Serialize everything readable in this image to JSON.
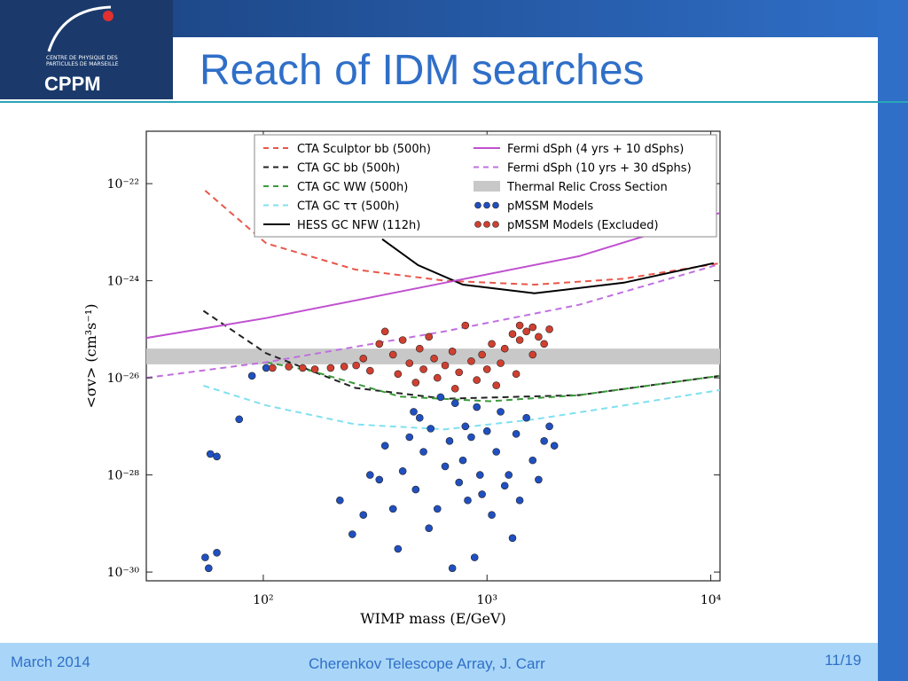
{
  "header": {
    "title": "Reach of IDM searches",
    "logo_caption": "CENTRE DE PHYSIQUE DES PARTICULES DE MARSEILLE",
    "logo_name": "CPPM"
  },
  "footer": {
    "date": "March 2014",
    "center": "Cherenkov Telescope Array, J. Carr",
    "page": "11/19"
  },
  "chart_data": {
    "type": "line",
    "xlabel": "WIMP mass (E/GeV)",
    "ylabel": "<σv> (cm³s⁻¹)",
    "xscale": "log",
    "yscale": "log",
    "xlim": [
      30,
      11000
    ],
    "ylim": [
      6.6e-31,
      1.2e-21
    ],
    "xticks": [
      {
        "value": 100,
        "label": "10²"
      },
      {
        "value": 1000,
        "label": "10³"
      },
      {
        "value": 10000,
        "label": "10⁴"
      }
    ],
    "yticks": [
      {
        "value": 1e-30,
        "label": "10⁻³⁰"
      },
      {
        "value": 1e-28,
        "label": "10⁻²⁸"
      },
      {
        "value": 1e-26,
        "label": "10⁻²⁶"
      },
      {
        "value": 1e-24,
        "label": "10⁻²⁴"
      },
      {
        "value": 1e-22,
        "label": "10⁻²²"
      }
    ],
    "legend": "upper right",
    "series": [
      {
        "name": "CTA Sculptor bb (500h)",
        "color": "#e8574a",
        "style": "dashed",
        "x": [
          55,
          103,
          258,
          649,
          1630,
          4090,
          11000
        ],
        "values": [
          7.2e-23,
          5.9e-24,
          1.7e-24,
          1e-24,
          8.3e-25,
          1.1e-24,
          2.3e-24
        ]
      },
      {
        "name": "CTA GC bb (500h)",
        "color": "#222222",
        "style": "dashed",
        "x": [
          54,
          103,
          258,
          649,
          2580,
          11000
        ],
        "values": [
          2.4e-25,
          3.2e-26,
          6.2e-27,
          3.7e-27,
          4.4e-27,
          1.1e-26
        ]
      },
      {
        "name": "CTA GC WW (500h)",
        "color": "#3a9a3a",
        "style": "dashed",
        "x": [
          103,
          163,
          409,
          1030,
          2580,
          11000
        ],
        "values": [
          2.1e-26,
          1.4e-26,
          4.1e-27,
          3.3e-27,
          4.4e-27,
          1.1e-26
        ]
      },
      {
        "name": "CTA GC ττ (500h)",
        "color": "#7fe0f0",
        "style": "dashed",
        "x": [
          54,
          103,
          258,
          649,
          1630,
          4090,
          11000
        ],
        "values": [
          6.9e-27,
          2.7e-27,
          1.1e-27,
          8.7e-28,
          1.4e-27,
          2.7e-27,
          5.6e-27
        ]
      },
      {
        "name": "HESS GC NFW (112h)",
        "color": "#000000",
        "style": "solid",
        "x": [
          340,
          492,
          780,
          1630,
          4090,
          10300
        ],
        "values": [
          7.2e-24,
          2.1e-24,
          8.3e-25,
          5.5e-25,
          9.1e-25,
          2.3e-24
        ]
      },
      {
        "name": "Fermi dSph (4 yrs + 10 dSphs)",
        "color": "#c050d0",
        "style": "solid",
        "x": [
          30,
          103,
          649,
          2580,
          11000
        ],
        "values": [
          6.6e-26,
          1.7e-25,
          9.1e-25,
          3.2e-24,
          2.5e-23
        ]
      },
      {
        "name": "Fermi dSph (10 yrs + 30 dSphs)",
        "color": "#c070e0",
        "style": "dashed",
        "x": [
          30,
          103,
          649,
          2580,
          11000
        ],
        "values": [
          1e-26,
          2.1e-26,
          9.1e-26,
          3.2e-25,
          2.2e-24
        ]
      },
      {
        "name": "Thermal Relic Cross Section",
        "color": "#c8c8c8",
        "style": "band",
        "band": [
          1.9e-26,
          4e-26
        ]
      },
      {
        "name": "pMSSM Models",
        "color": "#2050c0",
        "style": "points",
        "x": [
          55,
          57,
          62,
          58,
          62,
          78,
          89,
          103,
          220,
          250,
          280,
          300,
          330,
          350,
          380,
          400,
          420,
          450,
          470,
          480,
          500,
          520,
          550,
          560,
          600,
          620,
          650,
          680,
          700,
          720,
          750,
          780,
          800,
          820,
          850,
          880,
          900,
          930,
          950,
          1000,
          1050,
          1100,
          1150,
          1200,
          1250,
          1300,
          1350,
          1400,
          1500,
          1600,
          1700,
          1800,
          1900,
          2000
        ],
        "values": [
          2e-30,
          1.2e-30,
          2.5e-30,
          2.7e-28,
          2.4e-28,
          1.4e-27,
          1.1e-26,
          1.6e-26,
          3e-29,
          6e-30,
          1.5e-29,
          1e-28,
          8e-29,
          4e-28,
          2e-29,
          3e-30,
          1.2e-28,
          6e-28,
          2e-27,
          5e-29,
          1.5e-27,
          3e-28,
          8e-30,
          9e-28,
          2e-29,
          4e-27,
          1.5e-28,
          5e-28,
          1.2e-30,
          3e-27,
          7e-29,
          2e-28,
          1e-27,
          3e-29,
          6e-28,
          2e-30,
          2.5e-27,
          1e-28,
          4e-29,
          8e-28,
          1.5e-29,
          3e-28,
          2e-27,
          6e-29,
          1e-28,
          5e-30,
          7e-28,
          3e-29,
          1.5e-27,
          2e-28,
          8e-29,
          5e-28,
          1e-27,
          4e-28
        ]
      },
      {
        "name": "pMSSM Models (Excluded)",
        "color": "#d04030",
        "style": "points",
        "x": [
          110,
          130,
          150,
          170,
          200,
          230,
          260,
          280,
          300,
          330,
          350,
          380,
          400,
          420,
          450,
          480,
          500,
          520,
          550,
          580,
          600,
          650,
          700,
          720,
          750,
          800,
          850,
          900,
          950,
          1000,
          1050,
          1100,
          1150,
          1200,
          1300,
          1350,
          1400,
          1500,
          1600,
          1700,
          1800,
          1900,
          1600,
          1400
        ],
        "values": [
          1.6e-26,
          1.7e-26,
          1.6e-26,
          1.5e-26,
          1.6e-26,
          1.7e-26,
          1.8e-26,
          2.5e-26,
          1.4e-26,
          5e-26,
          9e-26,
          3e-26,
          1.2e-26,
          6e-26,
          2e-26,
          8e-27,
          4e-26,
          1.5e-26,
          7e-26,
          2.5e-26,
          1e-26,
          1.8e-26,
          3.5e-26,
          6e-27,
          1.3e-26,
          1.2e-25,
          2.2e-26,
          9e-27,
          3e-26,
          1.5e-26,
          5e-26,
          7e-27,
          2e-26,
          4e-26,
          8e-26,
          1.2e-26,
          6e-26,
          9e-26,
          3e-26,
          7e-26,
          5e-26,
          1e-25,
          1.1e-25,
          1.2e-25
        ]
      }
    ]
  }
}
